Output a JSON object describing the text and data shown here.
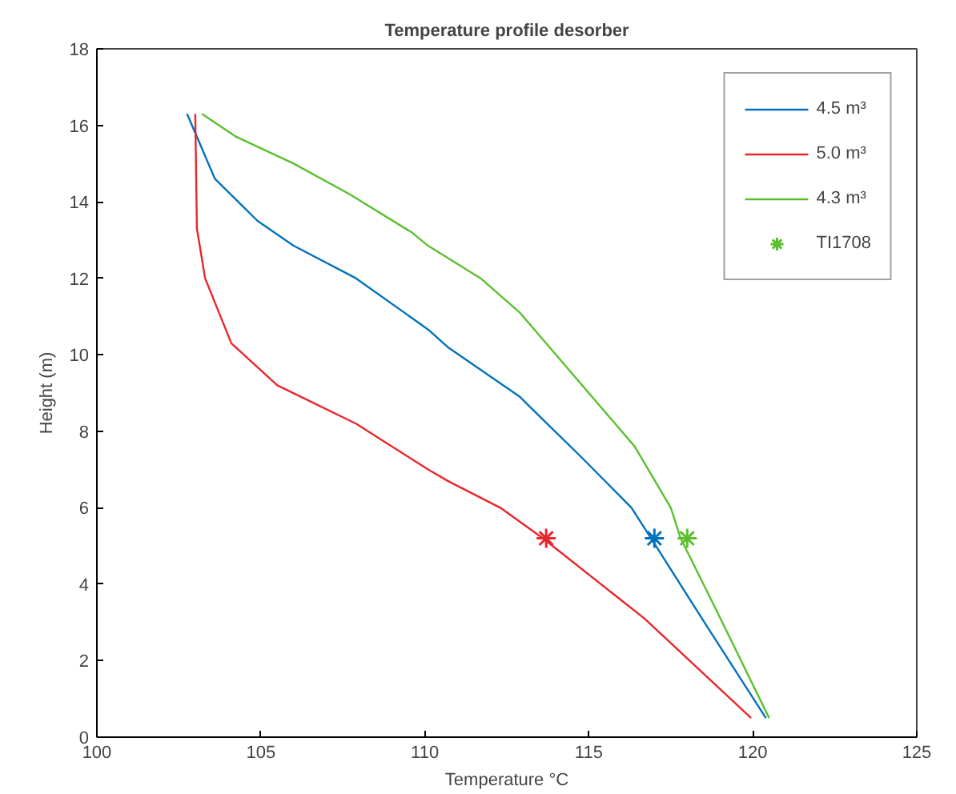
{
  "chart_data": {
    "type": "line",
    "title": "Temperature profile desorber",
    "xlabel": "Temperature °C",
    "ylabel": "Height (m)",
    "xlim": [
      100,
      125
    ],
    "xticks": [
      100,
      105,
      110,
      115,
      120,
      125
    ],
    "ylim": [
      0,
      18
    ],
    "yticks": [
      0,
      2,
      4,
      6,
      8,
      10,
      12,
      14,
      16,
      18
    ],
    "grid": false,
    "legend": "top right",
    "line_style": "solid",
    "series": [
      {
        "name": "4.5 m³",
        "color": "#0072bd",
        "x": [
          120.4,
          118.6,
          116.9,
          116.3,
          114.8,
          113.25,
          112.9,
          110.7,
          110.1,
          107.9,
          106.0,
          104.9,
          103.6,
          102.75
        ],
        "values": [
          0.5,
          2.9,
          5.2,
          6.0,
          7.3,
          8.6,
          8.9,
          10.2,
          10.66,
          12.0,
          12.85,
          13.5,
          14.6,
          16.3
        ]
      },
      {
        "name": "5.0 m³",
        "color": "#e8262b",
        "x": [
          119.95,
          116.7,
          113.6,
          112.3,
          110.7,
          110.1,
          107.9,
          105.5,
          104.1,
          103.3,
          103.05,
          103.0
        ],
        "values": [
          0.5,
          3.1,
          5.2,
          6.0,
          6.7,
          7.0,
          8.2,
          9.2,
          10.3,
          12.0,
          13.3,
          16.3
        ]
      },
      {
        "name": "4.3 m³",
        "color": "#5cbf2f",
        "x": [
          120.5,
          118.9,
          117.8,
          117.5,
          116.4,
          114.8,
          112.9,
          112.5,
          111.7,
          110.1,
          109.6,
          107.7,
          106.0,
          104.25,
          103.2
        ],
        "values": [
          0.5,
          3.3,
          5.2,
          6.0,
          7.6,
          9.2,
          11.1,
          11.4,
          12.0,
          12.85,
          13.2,
          14.2,
          15.0,
          15.7,
          16.3
        ]
      },
      {
        "name": "TI1708",
        "type": "scatter",
        "marker": "cross",
        "color": "#5cbf2f",
        "colors": [
          "#e8262b",
          "#0072bd",
          "#5cbf2f"
        ],
        "x": [
          113.7,
          117.0,
          118.0
        ],
        "values": [
          5.2,
          5.2,
          5.2
        ]
      }
    ]
  }
}
